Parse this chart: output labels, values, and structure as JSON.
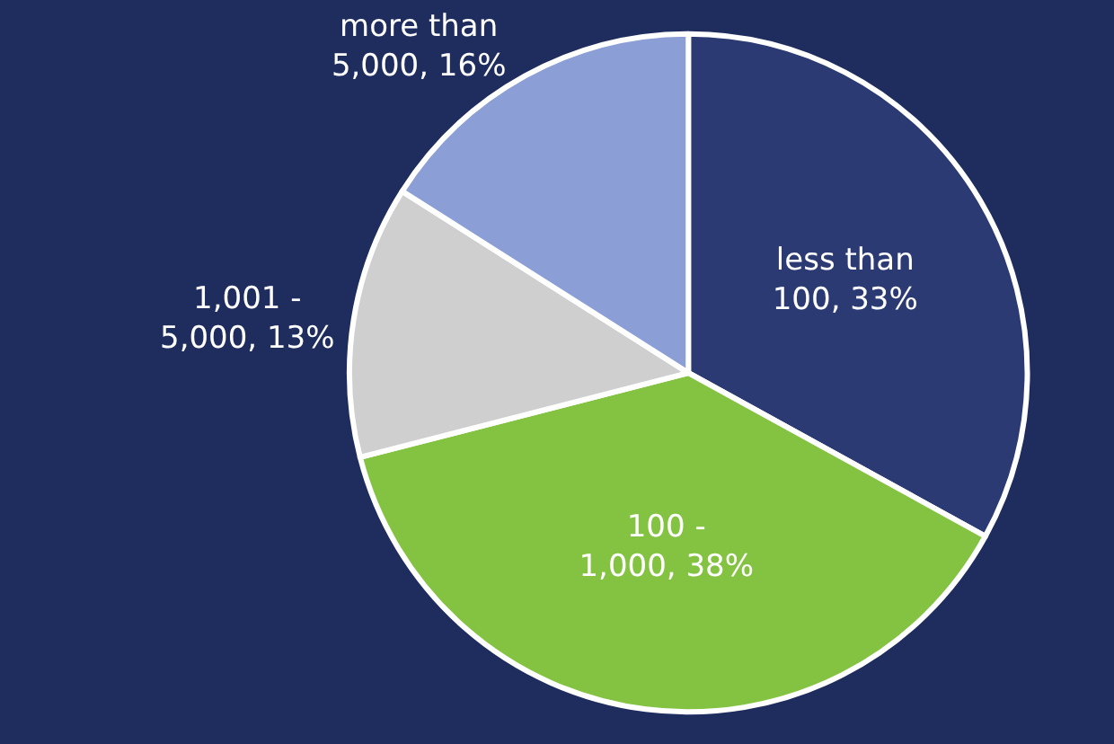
{
  "chart_data": {
    "type": "pie",
    "categories": [
      "less than 100",
      "100 - 1,000",
      "1,001 - 5,000",
      "more than 5,000"
    ],
    "values": [
      33,
      38,
      13,
      16
    ],
    "value_labels": [
      "33%",
      "38%",
      "13%",
      "16%"
    ],
    "colors": [
      "#2b3a73",
      "#84c341",
      "#d0cfd0",
      "#8b9fd6"
    ],
    "legend": false
  }
}
